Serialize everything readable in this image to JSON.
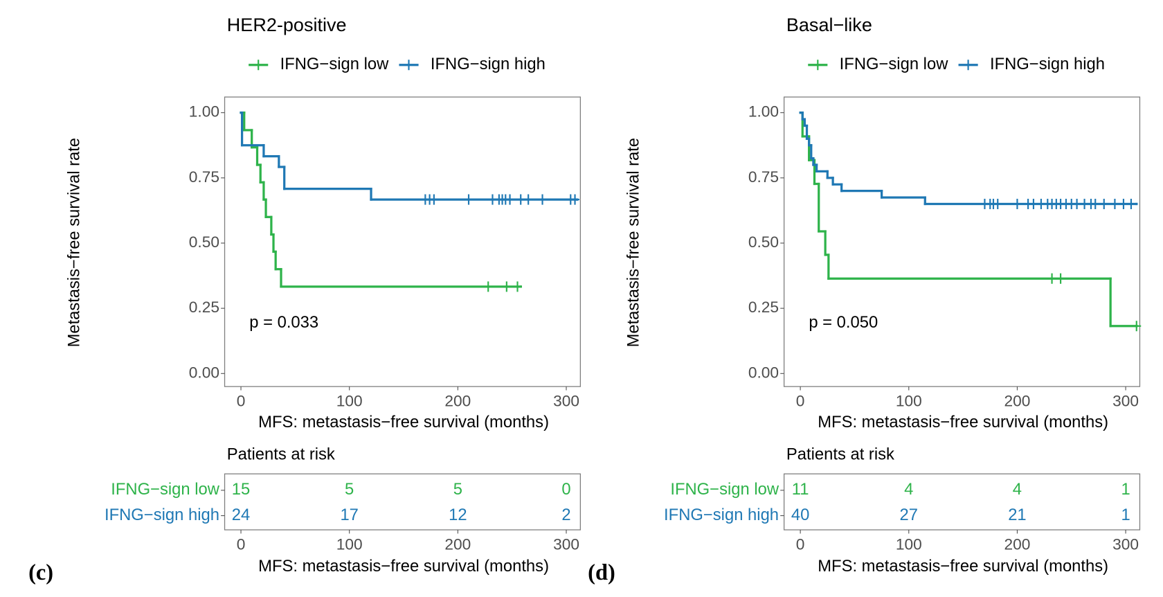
{
  "chart_data": [
    {
      "type": "step",
      "panel_label": "(c)",
      "title": "HER2-positive",
      "annotation": "p = 0.033",
      "xlabel": "MFS: metastasis−free survival (months)",
      "ylabel": "Metastasis−free survival rate",
      "xlim": [
        -15,
        313
      ],
      "ylim": [
        -0.05,
        1.06
      ],
      "xticks": [
        0,
        100,
        200,
        300
      ],
      "yticks": [
        {
          "value": 0,
          "label": "0.00"
        },
        {
          "value": 0.25,
          "label": "0.25"
        },
        {
          "value": 0.5,
          "label": "0.50"
        },
        {
          "value": 0.75,
          "label": "0.75"
        },
        {
          "value": 1,
          "label": "1.00"
        }
      ],
      "series": [
        {
          "name": "IFNG−sign low",
          "color": "#2eb34a",
          "x": [
            0,
            3,
            10,
            15,
            18,
            21,
            23,
            28,
            30,
            32,
            37,
            258
          ],
          "values": [
            1,
            0.933,
            0.867,
            0.8,
            0.733,
            0.667,
            0.6,
            0.533,
            0.467,
            0.4,
            0.333,
            0.333
          ],
          "censor_x": [
            228,
            245,
            255
          ],
          "censor_values": [
            0.333,
            0.333,
            0.333
          ]
        },
        {
          "name": "IFNG−sign high",
          "color": "#1f78b4",
          "x": [
            0,
            1,
            21,
            35,
            40,
            120,
            310
          ],
          "values": [
            1,
            0.875,
            0.833,
            0.792,
            0.708,
            0.667,
            0.667
          ],
          "censor_x": [
            170,
            174,
            178,
            210,
            232,
            238,
            241,
            244,
            248,
            258,
            265,
            278,
            304,
            308
          ],
          "censor_values": [
            0.667,
            0.667,
            0.667,
            0.667,
            0.667,
            0.667,
            0.667,
            0.667,
            0.667,
            0.667,
            0.667,
            0.667,
            0.667,
            0.667
          ]
        }
      ],
      "risk": {
        "title": "Patients at risk",
        "x": [
          0,
          100,
          200,
          300
        ],
        "counts": [
          [
            15,
            5,
            5,
            0
          ],
          [
            24,
            17,
            12,
            2
          ]
        ]
      }
    },
    {
      "type": "step",
      "panel_label": "(d)",
      "title": "Basal−like",
      "annotation": "p = 0.050",
      "xlabel": "MFS: metastasis−free survival (months)",
      "ylabel": "Metastasis−free survival rate",
      "xlim": [
        -15,
        313
      ],
      "ylim": [
        -0.05,
        1.06
      ],
      "xticks": [
        0,
        100,
        200,
        300
      ],
      "yticks": [
        {
          "value": 0,
          "label": "0.00"
        },
        {
          "value": 0.25,
          "label": "0.25"
        },
        {
          "value": 0.5,
          "label": "0.50"
        },
        {
          "value": 0.75,
          "label": "0.75"
        },
        {
          "value": 1,
          "label": "1.00"
        }
      ],
      "series": [
        {
          "name": "IFNG−sign low",
          "color": "#2eb34a",
          "x": [
            0,
            2,
            8,
            13,
            17,
            23,
            26,
            286,
            310
          ],
          "values": [
            1,
            0.909,
            0.818,
            0.727,
            0.545,
            0.455,
            0.364,
            0.182,
            0.182
          ],
          "censor_x": [
            232,
            240,
            310
          ],
          "censor_values": [
            0.364,
            0.364,
            0.182
          ]
        },
        {
          "name": "IFNG−sign high",
          "color": "#1f78b4",
          "x": [
            0,
            2,
            4,
            6,
            8,
            10,
            12,
            15,
            25,
            30,
            38,
            75,
            115,
            310
          ],
          "values": [
            1,
            0.975,
            0.95,
            0.9,
            0.875,
            0.825,
            0.8,
            0.775,
            0.75,
            0.725,
            0.7,
            0.675,
            0.65,
            0.65
          ],
          "censor_x": [
            170,
            175,
            178,
            182,
            200,
            210,
            215,
            222,
            228,
            232,
            236,
            240,
            245,
            250,
            255,
            262,
            268,
            272,
            280,
            290,
            298,
            305
          ],
          "censor_values": [
            0.65,
            0.65,
            0.65,
            0.65,
            0.65,
            0.65,
            0.65,
            0.65,
            0.65,
            0.65,
            0.65,
            0.65,
            0.65,
            0.65,
            0.65,
            0.65,
            0.65,
            0.65,
            0.65,
            0.65,
            0.65,
            0.65
          ]
        }
      ],
      "risk": {
        "title": "Patients at risk",
        "x": [
          0,
          100,
          200,
          300
        ],
        "counts": [
          [
            11,
            4,
            4,
            1
          ],
          [
            40,
            27,
            21,
            1
          ]
        ]
      }
    }
  ]
}
